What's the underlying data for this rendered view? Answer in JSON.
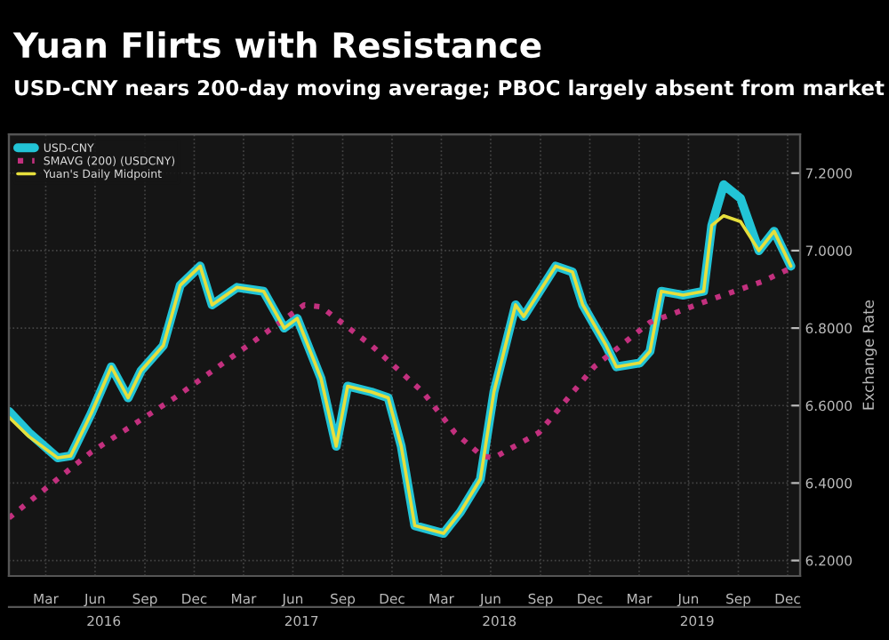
{
  "chart_data": {
    "type": "line",
    "title": "Yuan Flirts with Resistance",
    "subtitle": "USD-CNY nears 200-day moving average; PBOC largely absent from market",
    "y2label": "Exchange Rate",
    "series": [
      {
        "name": "USD-CNY",
        "color": "#22c4d6",
        "axis": "y2",
        "line_style": "solid",
        "x": [
          "2016-01-08",
          "2016-02-14",
          "2016-04-07",
          "2016-05-01",
          "2016-06-08",
          "2016-07-15",
          "2016-08-15",
          "2016-09-08",
          "2016-10-19",
          "2016-11-19",
          "2016-12-26",
          "2017-01-17",
          "2017-03-04",
          "2017-04-22",
          "2017-05-30",
          "2017-06-23",
          "2017-08-06",
          "2017-09-03",
          "2017-09-24",
          "2017-11-07",
          "2017-12-08",
          "2018-01-01",
          "2018-01-26",
          "2018-03-20",
          "2018-04-20",
          "2018-05-27",
          "2018-06-21",
          "2018-07-31",
          "2018-08-15",
          "2018-10-13",
          "2018-11-13",
          "2018-12-02",
          "2019-01-14",
          "2019-02-02",
          "2019-03-17",
          "2019-04-05",
          "2019-04-26",
          "2019-06-05",
          "2019-07-13",
          "2019-07-28",
          "2019-08-19",
          "2019-09-19",
          "2019-10-23",
          "2019-11-20",
          "2019-12-21"
        ],
        "values": [
          6.585,
          6.53,
          6.465,
          6.47,
          6.58,
          6.7,
          6.62,
          6.69,
          6.755,
          6.91,
          6.96,
          6.86,
          6.905,
          6.895,
          6.8,
          6.825,
          6.67,
          6.495,
          6.65,
          6.635,
          6.62,
          6.495,
          6.29,
          6.27,
          6.325,
          6.41,
          6.635,
          6.86,
          6.83,
          6.96,
          6.945,
          6.86,
          6.755,
          6.7,
          6.71,
          6.74,
          6.895,
          6.885,
          6.895,
          7.065,
          7.17,
          7.135,
          7.0,
          7.05,
          6.96
        ]
      },
      {
        "name": "SMAVG (200) (USDCNY)",
        "color": "#c2307e",
        "axis": "y2",
        "line_style": "dotted",
        "x": [
          "2016-01-08",
          "2016-06-08",
          "2016-11-09",
          "2017-04-13",
          "2017-07-06",
          "2017-08-06",
          "2017-11-07",
          "2018-02-10",
          "2018-04-10",
          "2018-05-30",
          "2018-06-21",
          "2018-09-12",
          "2018-12-23",
          "2019-04-05",
          "2019-07-19",
          "2019-10-29",
          "2019-12-21"
        ],
        "values": [
          6.31,
          6.48,
          6.62,
          6.775,
          6.86,
          6.855,
          6.755,
          6.635,
          6.53,
          6.47,
          6.465,
          6.53,
          6.7,
          6.815,
          6.87,
          6.92,
          6.955
        ]
      },
      {
        "name": "Yuan's Daily Midpoint",
        "color": "#e6df3c",
        "axis": "y2",
        "line_style": "solid",
        "x": [
          "2016-01-08",
          "2016-02-14",
          "2016-04-07",
          "2016-05-01",
          "2016-06-08",
          "2016-07-15",
          "2016-08-15",
          "2016-09-08",
          "2016-10-19",
          "2016-11-19",
          "2016-12-26",
          "2017-01-17",
          "2017-03-04",
          "2017-04-22",
          "2017-05-30",
          "2017-06-23",
          "2017-08-06",
          "2017-09-03",
          "2017-09-24",
          "2017-11-07",
          "2017-12-08",
          "2018-01-01",
          "2018-01-26",
          "2018-03-20",
          "2018-04-20",
          "2018-05-27",
          "2018-06-21",
          "2018-07-31",
          "2018-08-15",
          "2018-10-13",
          "2018-11-13",
          "2018-12-02",
          "2019-01-14",
          "2019-02-02",
          "2019-03-17",
          "2019-04-05",
          "2019-04-26",
          "2019-06-05",
          "2019-07-13",
          "2019-07-28",
          "2019-08-19",
          "2019-09-19",
          "2019-10-23",
          "2019-11-20",
          "2019-12-21"
        ],
        "values": [
          6.57,
          6.52,
          6.465,
          6.47,
          6.58,
          6.7,
          6.62,
          6.69,
          6.755,
          6.91,
          6.96,
          6.86,
          6.905,
          6.895,
          6.8,
          6.825,
          6.67,
          6.495,
          6.65,
          6.635,
          6.62,
          6.495,
          6.29,
          6.27,
          6.325,
          6.41,
          6.635,
          6.86,
          6.83,
          6.96,
          6.945,
          6.86,
          6.755,
          6.7,
          6.71,
          6.74,
          6.895,
          6.885,
          6.895,
          7.065,
          7.09,
          7.075,
          7.0,
          7.05,
          6.96
        ]
      }
    ],
    "xlim": [
      "2016-01-08",
      "2020-01-07"
    ],
    "xticks": [
      {
        "value": "2016-03-16",
        "label": "Mar"
      },
      {
        "value": "2016-06-15",
        "label": "Jun"
      },
      {
        "value": "2016-09-15",
        "label": "Sep"
      },
      {
        "value": "2016-12-15",
        "label": "Dec"
      },
      {
        "value": "2017-03-16",
        "label": "Mar"
      },
      {
        "value": "2017-06-15",
        "label": "Jun"
      },
      {
        "value": "2017-09-15",
        "label": "Sep"
      },
      {
        "value": "2017-12-15",
        "label": "Dec"
      },
      {
        "value": "2018-03-16",
        "label": "Mar"
      },
      {
        "value": "2018-06-15",
        "label": "Jun"
      },
      {
        "value": "2018-09-15",
        "label": "Sep"
      },
      {
        "value": "2018-12-15",
        "label": "Dec"
      },
      {
        "value": "2019-03-16",
        "label": "Mar"
      },
      {
        "value": "2019-06-15",
        "label": "Jun"
      },
      {
        "value": "2019-09-15",
        "label": "Sep"
      },
      {
        "value": "2019-12-15",
        "label": "Dec"
      }
    ],
    "x2lim": [
      "2016-01-08",
      "2020-01-07"
    ],
    "x2ticks": [
      {
        "value": "2016-07-01",
        "label": "2016"
      },
      {
        "value": "2017-07-01",
        "label": "2017"
      },
      {
        "value": "2018-07-01",
        "label": "2018"
      },
      {
        "value": "2019-07-01",
        "label": "2019"
      }
    ],
    "y2lim": [
      6.16,
      7.3
    ],
    "y2ticks": [
      {
        "value": 6.2,
        "label": "6.2000"
      },
      {
        "value": 6.4,
        "label": "6.4000"
      },
      {
        "value": 6.6,
        "label": "6.6000"
      },
      {
        "value": 6.8,
        "label": "6.8000"
      },
      {
        "value": 7.0,
        "label": "7.0000"
      },
      {
        "value": 7.2,
        "label": "7.2000"
      }
    ],
    "tick_labels": "xy2",
    "grid": true,
    "legend": "top left"
  }
}
